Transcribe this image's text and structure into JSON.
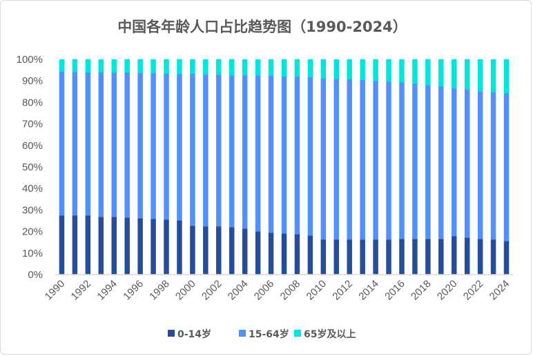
{
  "chart_data": {
    "type": "bar",
    "stacked": true,
    "title": "中国各年龄人口占比趋势图（1990-2024）",
    "xlabel": "",
    "ylabel": "",
    "ylim": [
      0,
      100
    ],
    "y_ticks": [
      "0%",
      "10%",
      "20%",
      "30%",
      "40%",
      "50%",
      "60%",
      "70%",
      "80%",
      "90%",
      "100%"
    ],
    "grid": false,
    "legend_position": "bottom",
    "categories": [
      "1990",
      "1991",
      "1992",
      "1993",
      "1994",
      "1995",
      "1996",
      "1997",
      "1998",
      "1999",
      "2000",
      "2001",
      "2002",
      "2003",
      "2004",
      "2005",
      "2006",
      "2007",
      "2008",
      "2009",
      "2010",
      "2011",
      "2012",
      "2013",
      "2014",
      "2015",
      "2016",
      "2017",
      "2018",
      "2019",
      "2020",
      "2021",
      "2022",
      "2023",
      "2024"
    ],
    "series": [
      {
        "name": "0-14岁",
        "color": "#264d99",
        "values": [
          27.5,
          27.5,
          27.5,
          26.8,
          26.8,
          26.5,
          26.2,
          25.9,
          25.6,
          25.2,
          22.7,
          22.4,
          22.4,
          22.0,
          21.4,
          20.1,
          19.5,
          19.1,
          18.8,
          18.2,
          16.3,
          16.3,
          16.3,
          16.3,
          16.3,
          16.3,
          16.6,
          16.6,
          16.6,
          16.6,
          17.9,
          17.2,
          16.6,
          16.3,
          15.6
        ]
      },
      {
        "name": "15-64岁",
        "color": "#5191ff",
        "values": [
          67.0,
          66.7,
          66.4,
          67.1,
          67.1,
          67.4,
          67.4,
          67.7,
          67.7,
          68.1,
          70.6,
          70.5,
          70.5,
          70.6,
          71.2,
          72.2,
          72.8,
          72.9,
          73.2,
          73.5,
          75.0,
          74.7,
          74.4,
          74.1,
          73.8,
          73.4,
          72.8,
          72.2,
          71.5,
          70.9,
          68.6,
          68.7,
          68.6,
          68.3,
          68.7
        ]
      },
      {
        "name": "65岁及以上",
        "color": "#00e5dc",
        "values": [
          5.5,
          5.8,
          6.1,
          6.1,
          6.1,
          6.1,
          6.4,
          6.4,
          6.7,
          6.7,
          6.7,
          7.1,
          7.1,
          7.4,
          7.4,
          7.7,
          7.7,
          8.0,
          8.0,
          8.3,
          8.7,
          9.0,
          9.3,
          9.6,
          9.9,
          10.3,
          10.6,
          11.2,
          11.9,
          12.5,
          13.5,
          14.1,
          14.8,
          15.4,
          15.7
        ]
      }
    ]
  }
}
